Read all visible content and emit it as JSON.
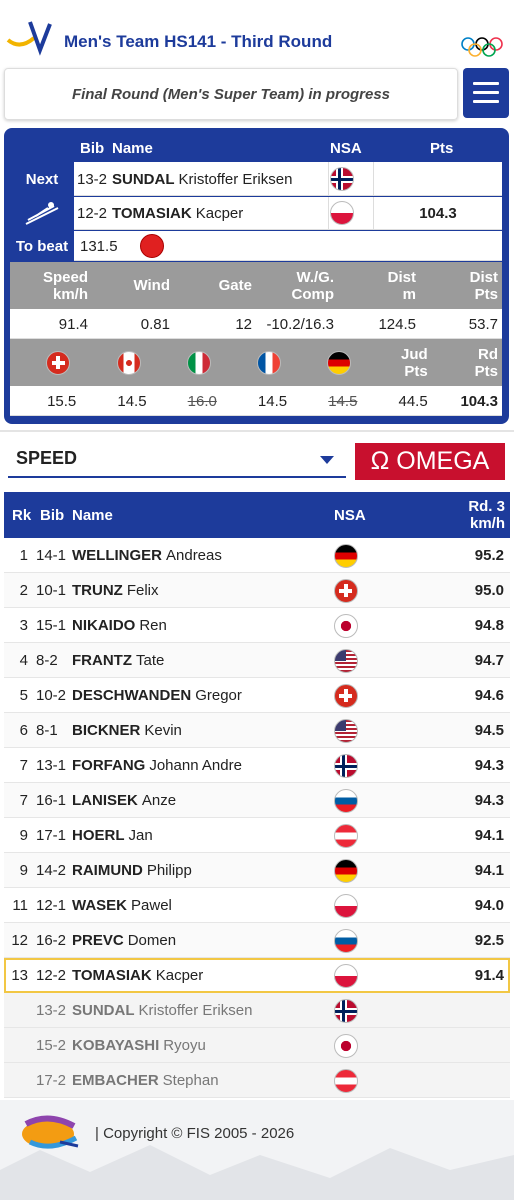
{
  "header": {
    "title": "Men's Team HS141 - Third Round"
  },
  "status": "Final Round (Men's Super Team) in progress",
  "current": {
    "columns": [
      "Bib",
      "Name",
      "NSA",
      "Pts"
    ],
    "next": {
      "label": "Next",
      "bib": "13-2",
      "surname": "SUNDAL",
      "first": "Kristoffer Eriksen"
    },
    "jumper": {
      "bib": "12-2",
      "surname": "TOMASIAK",
      "first": "Kacper",
      "pts": "104.3"
    },
    "to_beat": {
      "label": "To beat",
      "value": "131.5"
    },
    "stats_headers": [
      [
        "Speed",
        "km/h"
      ],
      [
        "Wind"
      ],
      [
        "Gate"
      ],
      [
        "W./G.",
        "Comp"
      ],
      [
        "Dist",
        "m"
      ],
      [
        "Dist",
        "Pts"
      ]
    ],
    "stats_values": [
      "91.4",
      "0.81",
      "12",
      "-10.2/16.3",
      "124.5",
      "53.7"
    ],
    "judge_headers": [
      [
        "Jud",
        "Pts"
      ],
      [
        "Rd",
        "Pts"
      ]
    ],
    "judge_values": [
      "15.5",
      "14.5",
      "16.0",
      "14.5",
      "14.5",
      "44.5",
      "104.3"
    ]
  },
  "ranking": {
    "select": "SPEED",
    "sponsor": "Ω OMEGA",
    "columns": [
      "Rk",
      "Bib",
      "Name",
      "NSA",
      [
        "Rd. 3",
        "km/h"
      ]
    ],
    "rows": [
      {
        "rk": "1",
        "bib": "14-1",
        "surname": "WELLINGER",
        "first": "Andreas",
        "speed": "95.2"
      },
      {
        "rk": "2",
        "bib": "10-1",
        "surname": "TRUNZ",
        "first": "Felix",
        "speed": "95.0"
      },
      {
        "rk": "3",
        "bib": "15-1",
        "surname": "NIKAIDO",
        "first": "Ren",
        "speed": "94.8"
      },
      {
        "rk": "4",
        "bib": "8-2",
        "surname": "FRANTZ",
        "first": "Tate",
        "speed": "94.7"
      },
      {
        "rk": "5",
        "bib": "10-2",
        "surname": "DESCHWANDEN",
        "first": "Gregor",
        "speed": "94.6"
      },
      {
        "rk": "6",
        "bib": "8-1",
        "surname": "BICKNER",
        "first": "Kevin",
        "speed": "94.5"
      },
      {
        "rk": "7",
        "bib": "13-1",
        "surname": "FORFANG",
        "first": "Johann Andre",
        "speed": "94.3"
      },
      {
        "rk": "7",
        "bib": "16-1",
        "surname": "LANISEK",
        "first": "Anze",
        "speed": "94.3"
      },
      {
        "rk": "9",
        "bib": "17-1",
        "surname": "HOERL",
        "first": "Jan",
        "speed": "94.1"
      },
      {
        "rk": "9",
        "bib": "14-2",
        "surname": "RAIMUND",
        "first": "Philipp",
        "speed": "94.1"
      },
      {
        "rk": "11",
        "bib": "12-1",
        "surname": "WASEK",
        "first": "Pawel",
        "speed": "94.0"
      },
      {
        "rk": "12",
        "bib": "16-2",
        "surname": "PREVC",
        "first": "Domen",
        "speed": "92.5"
      },
      {
        "rk": "13",
        "bib": "12-2",
        "surname": "TOMASIAK",
        "first": "Kacper",
        "speed": "91.4"
      },
      {
        "bib": "13-2",
        "surname": "SUNDAL",
        "first": "Kristoffer Eriksen"
      },
      {
        "bib": "15-2",
        "surname": "KOBAYASHI",
        "first": "Ryoyu"
      },
      {
        "bib": "17-2",
        "surname": "EMBACHER",
        "first": "Stephan"
      }
    ]
  },
  "footer": {
    "copyright": "| Copyright © FIS 2005 - 2026"
  }
}
